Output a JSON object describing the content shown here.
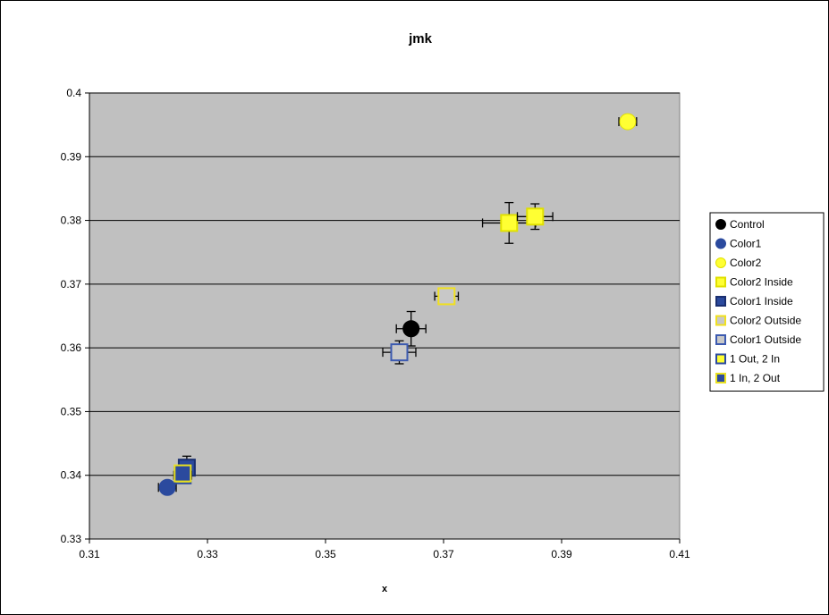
{
  "chart_data": {
    "type": "scatter",
    "title": "jmk",
    "xlabel": "x",
    "ylabel": "",
    "xlim": [
      0.31,
      0.41
    ],
    "ylim": [
      0.33,
      0.4
    ],
    "xticks": [
      "0.31",
      "0.33",
      "0.35",
      "0.37",
      "0.39",
      "0.41"
    ],
    "yticks": [
      "0.33",
      "0.34",
      "0.35",
      "0.36",
      "0.37",
      "0.38",
      "0.39",
      "0.4"
    ],
    "grid": "horizontal",
    "plot_background": "#c0c0c0",
    "legend_position": "right",
    "series": [
      {
        "name": "Control",
        "marker": "circle",
        "fill": "#000000",
        "stroke": "#000000",
        "points": [
          {
            "x": 0.3645,
            "y": 0.363,
            "xerr": 0.0025,
            "yerr": 0.0027
          }
        ]
      },
      {
        "name": "Color1",
        "marker": "circle",
        "fill": "#2b4a9e",
        "stroke": "#2b4a9e",
        "points": [
          {
            "x": 0.3232,
            "y": 0.3381,
            "xerr": 0.0015,
            "yerr": 0
          }
        ]
      },
      {
        "name": "Color2",
        "marker": "circle",
        "fill": "#ffff33",
        "stroke": "#e0e000",
        "points": [
          {
            "x": 0.4012,
            "y": 0.3955,
            "xerr": 0.0015,
            "yerr": 0
          }
        ]
      },
      {
        "name": "Color2 Inside",
        "marker": "square",
        "fill": "#ffff33",
        "stroke": "#e0e000",
        "points": [
          {
            "x": 0.3811,
            "y": 0.3796,
            "xerr": 0.0045,
            "yerr": 0.0032
          },
          {
            "x": 0.3855,
            "y": 0.3806,
            "xerr": 0.003,
            "yerr": 0.002
          }
        ]
      },
      {
        "name": "Color1 Inside",
        "marker": "square",
        "fill": "#2b4a9e",
        "stroke": "#1a2f70",
        "points": [
          {
            "x": 0.3265,
            "y": 0.3412,
            "xerr": 0.001,
            "yerr": 0.0018
          }
        ]
      },
      {
        "name": "Color2 Outside",
        "marker": "square",
        "fill": "#c8c8c8",
        "stroke": "#f0e020",
        "points": [
          {
            "x": 0.3705,
            "y": 0.3681,
            "xerr": 0.002,
            "yerr": 0.001
          }
        ]
      },
      {
        "name": "Color1 Outside",
        "marker": "square",
        "fill": "#c8c8c8",
        "stroke": "#3c5ab0",
        "points": [
          {
            "x": 0.3625,
            "y": 0.3593,
            "xerr": 0.0028,
            "yerr": 0.0018
          }
        ]
      },
      {
        "name": "1 Out, 2 In",
        "marker": "square",
        "fill": "#ffff33",
        "stroke": "#2b4a9e",
        "points": [
          {
            "x": 0.3258,
            "y": 0.34,
            "xerr": 0.0015,
            "yerr": 0.001
          }
        ]
      },
      {
        "name": "1 In, 2 Out",
        "marker": "square",
        "fill": "#2b4a9e",
        "stroke": "#e8e020",
        "points": [
          {
            "x": 0.3258,
            "y": 0.3403,
            "xerr": 0.0,
            "yerr": 0.0
          }
        ]
      }
    ]
  }
}
